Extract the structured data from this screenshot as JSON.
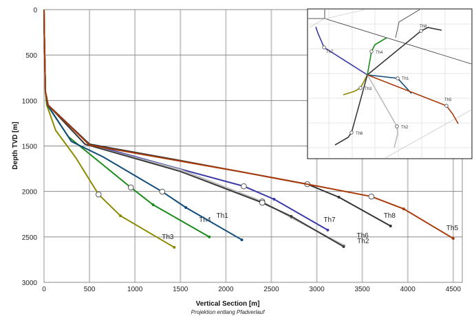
{
  "chart_data": {
    "type": "line",
    "xlabel": "Vertical Section [m]",
    "subtitle": "Projektion entlang Pfadverlauf",
    "ylabel": "Depth TVD [m]",
    "xlim": [
      0,
      4600
    ],
    "ylim": [
      0,
      3000
    ],
    "y_inverted": true,
    "xticks": [
      0,
      500,
      1000,
      1500,
      2000,
      2500,
      3000,
      3500,
      4000,
      4500
    ],
    "yticks": [
      0,
      500,
      1000,
      1500,
      2000,
      2500,
      3000
    ],
    "grid": true,
    "series": [
      {
        "name": "Th3",
        "color": "#8a8a00",
        "points": [
          [
            0,
            0
          ],
          [
            2,
            200
          ],
          [
            15,
            900
          ],
          [
            30,
            1050
          ],
          [
            129,
            1330
          ],
          [
            350,
            1630
          ],
          [
            600,
            2033
          ],
          [
            840,
            2268
          ],
          [
            1432,
            2615
          ]
        ],
        "marker": [
          600,
          2033
        ]
      },
      {
        "name": "Th4",
        "color": "#1a8a1a",
        "points": [
          [
            0,
            0
          ],
          [
            2,
            200
          ],
          [
            15,
            900
          ],
          [
            35,
            1050
          ],
          [
            270,
            1400
          ],
          [
            955,
            1957
          ],
          [
            1200,
            2147
          ],
          [
            1818,
            2500
          ]
        ],
        "marker": [
          955,
          1957
        ]
      },
      {
        "name": "Th1",
        "color": "#0f4a7a",
        "points": [
          [
            0,
            0
          ],
          [
            2,
            200
          ],
          [
            15,
            900
          ],
          [
            40,
            1050
          ],
          [
            300,
            1450
          ],
          [
            650,
            1620
          ],
          [
            1300,
            2003
          ],
          [
            1560,
            2177
          ],
          [
            2175,
            2532
          ]
        ],
        "marker": [
          1300,
          2003
        ]
      },
      {
        "name": "Th7",
        "color": "#3a3aa8",
        "points": [
          [
            0,
            0
          ],
          [
            2,
            200
          ],
          [
            15,
            900
          ],
          [
            45,
            1050
          ],
          [
            500,
            1480
          ],
          [
            1300,
            1700
          ],
          [
            2197,
            1943
          ],
          [
            2530,
            2086
          ],
          [
            3120,
            2425
          ]
        ],
        "marker": [
          2197,
          1943
        ]
      },
      {
        "name": "Th2",
        "color": "#bbbbbb",
        "points": [
          [
            0,
            0
          ],
          [
            2,
            200
          ],
          [
            15,
            900
          ],
          [
            45,
            1050
          ],
          [
            450,
            1480
          ],
          [
            1500,
            1760
          ],
          [
            2400,
            2110
          ],
          [
            2720,
            2290
          ],
          [
            3300,
            2593
          ]
        ],
        "marker": [
          2400,
          2110
        ]
      },
      {
        "name": "Th6",
        "color": "#3a3a3a",
        "points": [
          [
            0,
            0
          ],
          [
            2,
            200
          ],
          [
            15,
            900
          ],
          [
            45,
            1050
          ],
          [
            450,
            1480
          ],
          [
            1500,
            1780
          ],
          [
            2400,
            2124
          ],
          [
            2720,
            2275
          ],
          [
            3295,
            2607
          ]
        ],
        "marker": [
          2400,
          2124
        ]
      },
      {
        "name": "Th8",
        "color": "#333333",
        "points": [
          [
            0,
            0
          ],
          [
            2,
            200
          ],
          [
            15,
            900
          ],
          [
            45,
            1050
          ],
          [
            500,
            1480
          ],
          [
            1500,
            1660
          ],
          [
            2895,
            1920
          ],
          [
            3242,
            2063
          ],
          [
            3811,
            2380
          ]
        ],
        "marker": [
          2895,
          1920
        ]
      },
      {
        "name": "Th5",
        "color": "#a83a0a",
        "points": [
          [
            0,
            0
          ],
          [
            2,
            200
          ],
          [
            15,
            900
          ],
          [
            45,
            1050
          ],
          [
            500,
            1490
          ],
          [
            2167,
            1784
          ],
          [
            3000,
            1940
          ],
          [
            3600,
            2056
          ],
          [
            3955,
            2192
          ],
          [
            4500,
            2517
          ]
        ],
        "marker": [
          3600,
          2056
        ]
      }
    ]
  },
  "inset": {
    "labels": [
      "Th8",
      "Th7",
      "Th4",
      "Th1",
      "Th3",
      "Th5",
      "Th2",
      "Th6"
    ]
  }
}
